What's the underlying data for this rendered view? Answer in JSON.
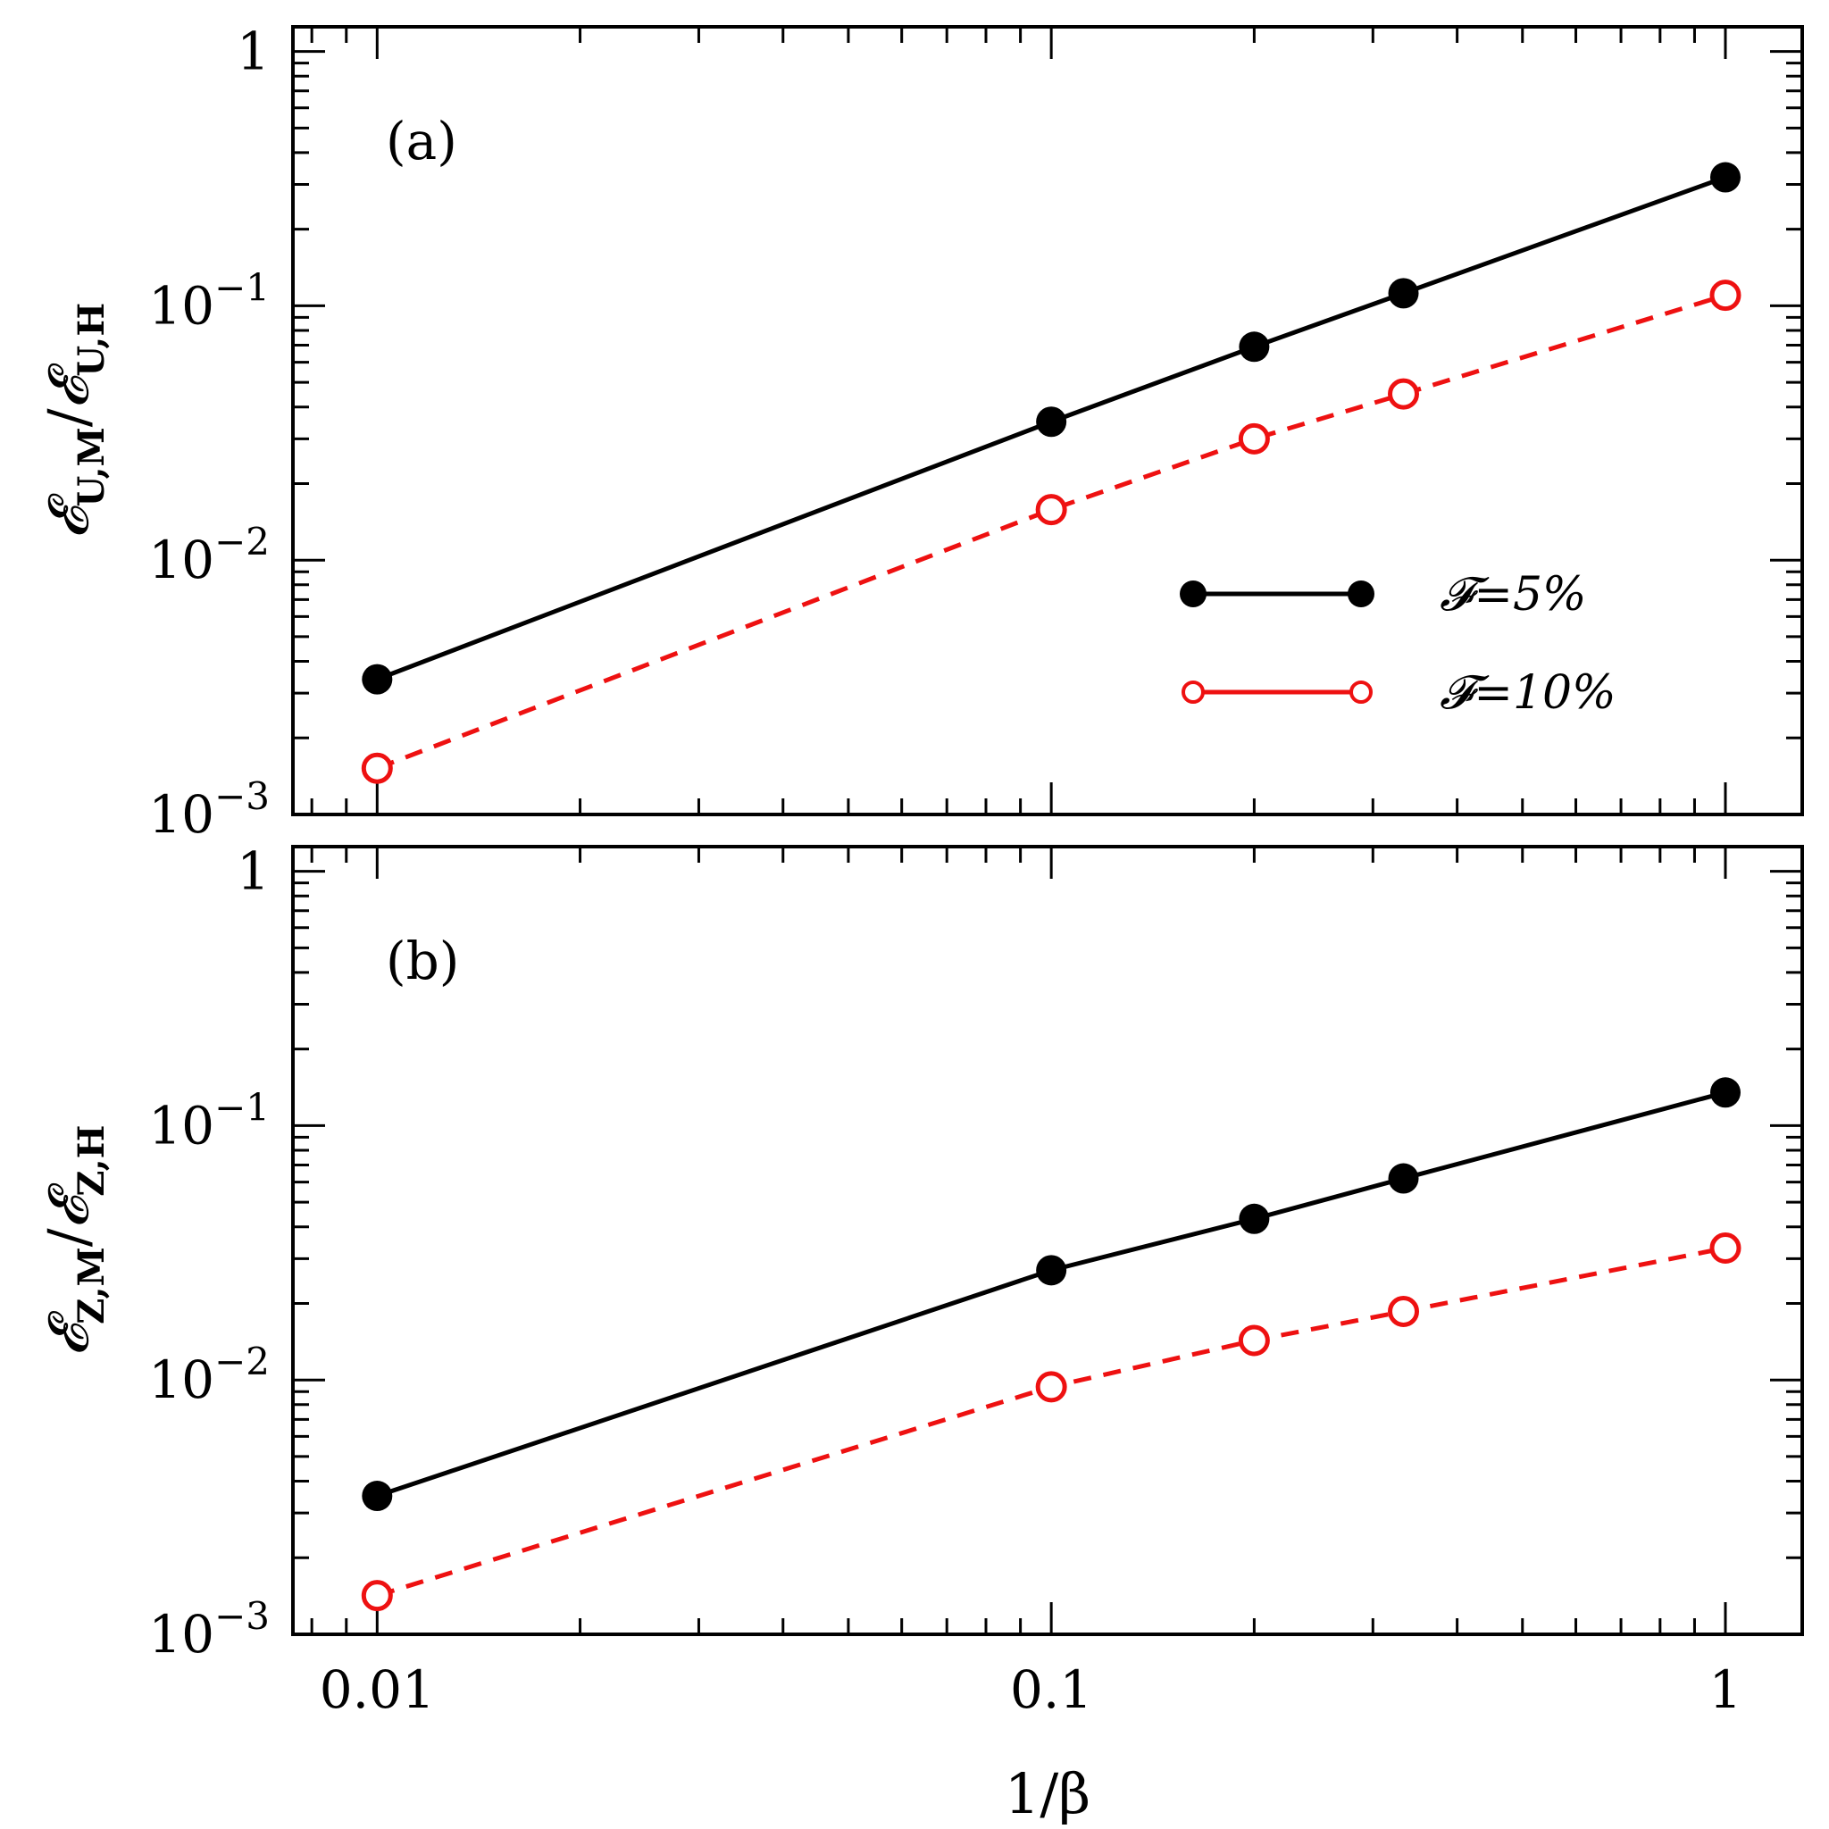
{
  "chart_data": [
    {
      "type": "line",
      "panel_label": "(a)",
      "ylabel": "𝓔U,M/𝓔U,H",
      "ylabel_main": "𝓔",
      "ylabel_sub1": "U,M",
      "ylabel_slash": "/",
      "ylabel_sub2": "U,H",
      "xscale": "log",
      "yscale": "log",
      "xlim": [
        0.0075,
        1.3
      ],
      "ylim": [
        0.001,
        1.25
      ],
      "x": [
        0.01,
        0.1,
        0.2,
        0.333,
        1
      ],
      "series": [
        {
          "name": "𝓕=5%",
          "values": [
            0.0034,
            0.035,
            0.069,
            0.112,
            0.32
          ],
          "color": "#000000",
          "marker": "filled-circle",
          "line": "solid"
        },
        {
          "name": "𝓕=10%",
          "values": [
            0.00152,
            0.0158,
            0.03,
            0.045,
            0.11
          ],
          "color": "#ee1111",
          "marker": "open-circle",
          "line": "dashed"
        }
      ],
      "legend_position": "right-middle",
      "y_tick_labels": [
        "10^-3",
        "10^-2",
        "10^-1",
        "1"
      ],
      "x_tick_labels": []
    },
    {
      "type": "line",
      "panel_label": "(b)",
      "ylabel": "𝓔Z,M/𝓔Z,H",
      "ylabel_main": "𝓔",
      "ylabel_sub1": "Z,M",
      "ylabel_slash": "/",
      "ylabel_sub2": "Z,H",
      "xlabel": "1/β",
      "xscale": "log",
      "yscale": "log",
      "xlim": [
        0.0075,
        1.3
      ],
      "ylim": [
        0.001,
        1.25
      ],
      "x": [
        0.01,
        0.1,
        0.2,
        0.333,
        1
      ],
      "series": [
        {
          "name": "𝓕=5%",
          "values": [
            0.0035,
            0.027,
            0.043,
            0.062,
            0.135
          ],
          "color": "#000000",
          "marker": "filled-circle",
          "line": "solid"
        },
        {
          "name": "𝓕=10%",
          "values": [
            0.00142,
            0.0094,
            0.0143,
            0.0186,
            0.033
          ],
          "color": "#ee1111",
          "marker": "open-circle",
          "line": "dashed"
        }
      ],
      "y_tick_labels": [
        "10^-3",
        "10^-2",
        "10^-1",
        "1"
      ],
      "x_tick_labels": [
        "0.01",
        "0.1",
        "1"
      ]
    }
  ],
  "legend": {
    "items": [
      {
        "label": "𝓕=5%",
        "color": "#000000",
        "marker": "filled-circle"
      },
      {
        "label": "𝓕=10%",
        "color": "#ee1111",
        "marker": "open-circle"
      }
    ]
  }
}
